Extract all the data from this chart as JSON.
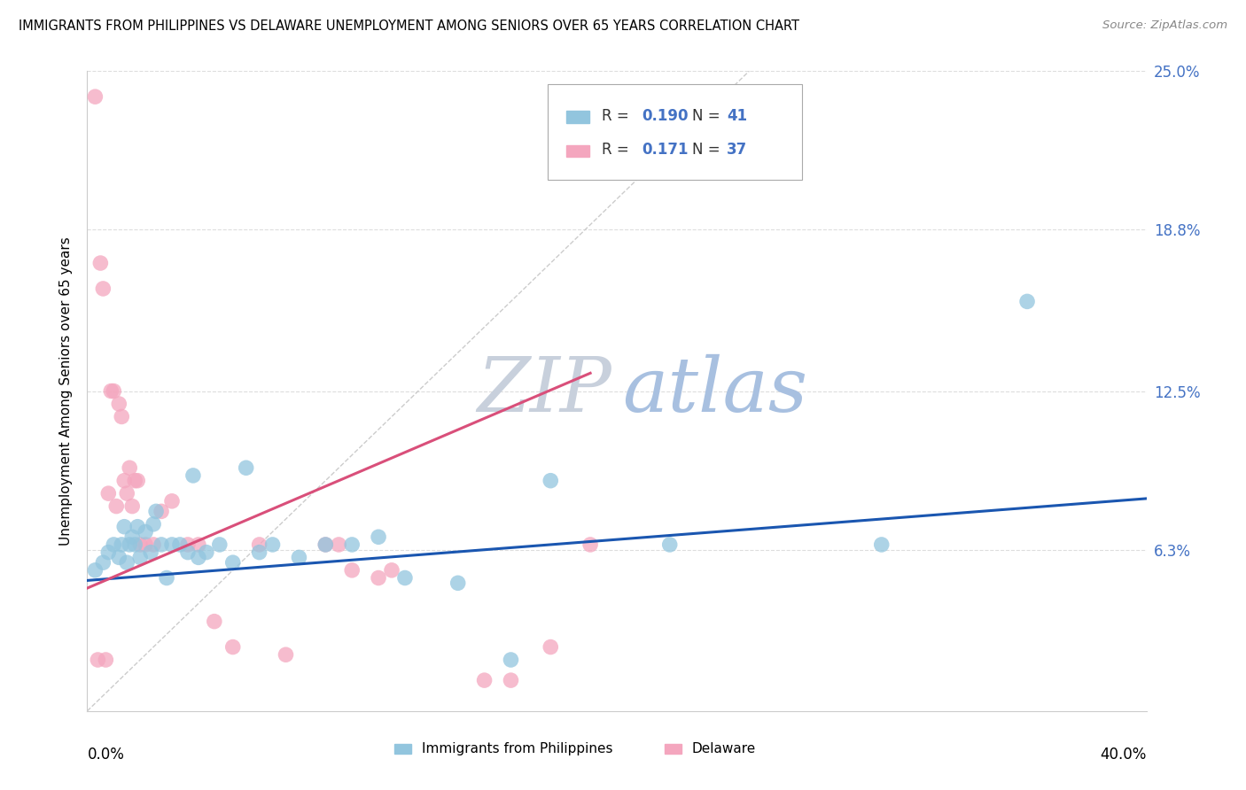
{
  "title": "IMMIGRANTS FROM PHILIPPINES VS DELAWARE UNEMPLOYMENT AMONG SENIORS OVER 65 YEARS CORRELATION CHART",
  "source": "Source: ZipAtlas.com",
  "ylabel": "Unemployment Among Seniors over 65 years",
  "xmin": 0.0,
  "xmax": 0.4,
  "ymin": 0.0,
  "ymax": 0.25,
  "yticks": [
    0.0,
    0.063,
    0.125,
    0.188,
    0.25
  ],
  "ytick_labels": [
    "",
    "6.3%",
    "12.5%",
    "18.8%",
    "25.0%"
  ],
  "blue_color": "#92c5de",
  "pink_color": "#f4a6be",
  "blue_line_color": "#1a56b0",
  "pink_line_color": "#d94f7a",
  "watermark_zip_color": "#c8d0dc",
  "watermark_atlas_color": "#a8c0e0",
  "blue_scatter_x": [
    0.003,
    0.006,
    0.008,
    0.01,
    0.012,
    0.013,
    0.014,
    0.015,
    0.016,
    0.017,
    0.018,
    0.019,
    0.02,
    0.022,
    0.024,
    0.025,
    0.026,
    0.028,
    0.03,
    0.032,
    0.035,
    0.038,
    0.04,
    0.042,
    0.045,
    0.05,
    0.055,
    0.06,
    0.065,
    0.07,
    0.08,
    0.09,
    0.1,
    0.11,
    0.12,
    0.14,
    0.16,
    0.175,
    0.22,
    0.3,
    0.355
  ],
  "blue_scatter_y": [
    0.055,
    0.058,
    0.062,
    0.065,
    0.06,
    0.065,
    0.072,
    0.058,
    0.065,
    0.068,
    0.065,
    0.072,
    0.06,
    0.07,
    0.062,
    0.073,
    0.078,
    0.065,
    0.052,
    0.065,
    0.065,
    0.062,
    0.092,
    0.06,
    0.062,
    0.065,
    0.058,
    0.095,
    0.062,
    0.065,
    0.06,
    0.065,
    0.065,
    0.068,
    0.052,
    0.05,
    0.02,
    0.09,
    0.065,
    0.065,
    0.16
  ],
  "pink_scatter_x": [
    0.003,
    0.004,
    0.005,
    0.006,
    0.007,
    0.008,
    0.009,
    0.01,
    0.011,
    0.012,
    0.013,
    0.014,
    0.015,
    0.016,
    0.017,
    0.018,
    0.019,
    0.02,
    0.022,
    0.025,
    0.028,
    0.032,
    0.038,
    0.042,
    0.048,
    0.055,
    0.065,
    0.075,
    0.09,
    0.095,
    0.1,
    0.11,
    0.115,
    0.15,
    0.16,
    0.175,
    0.19
  ],
  "pink_scatter_y": [
    0.24,
    0.02,
    0.175,
    0.165,
    0.02,
    0.085,
    0.125,
    0.125,
    0.08,
    0.12,
    0.115,
    0.09,
    0.085,
    0.095,
    0.08,
    0.09,
    0.09,
    0.065,
    0.065,
    0.065,
    0.078,
    0.082,
    0.065,
    0.065,
    0.035,
    0.025,
    0.065,
    0.022,
    0.065,
    0.065,
    0.055,
    0.052,
    0.055,
    0.012,
    0.012,
    0.025,
    0.065
  ],
  "blue_trend_x": [
    0.0,
    0.4
  ],
  "blue_trend_y": [
    0.051,
    0.083
  ],
  "pink_trend_x": [
    0.0,
    0.19
  ],
  "pink_trend_y": [
    0.048,
    0.132
  ],
  "ref_line_x": [
    0.0,
    0.25
  ],
  "ref_line_y": [
    0.0,
    0.25
  ]
}
